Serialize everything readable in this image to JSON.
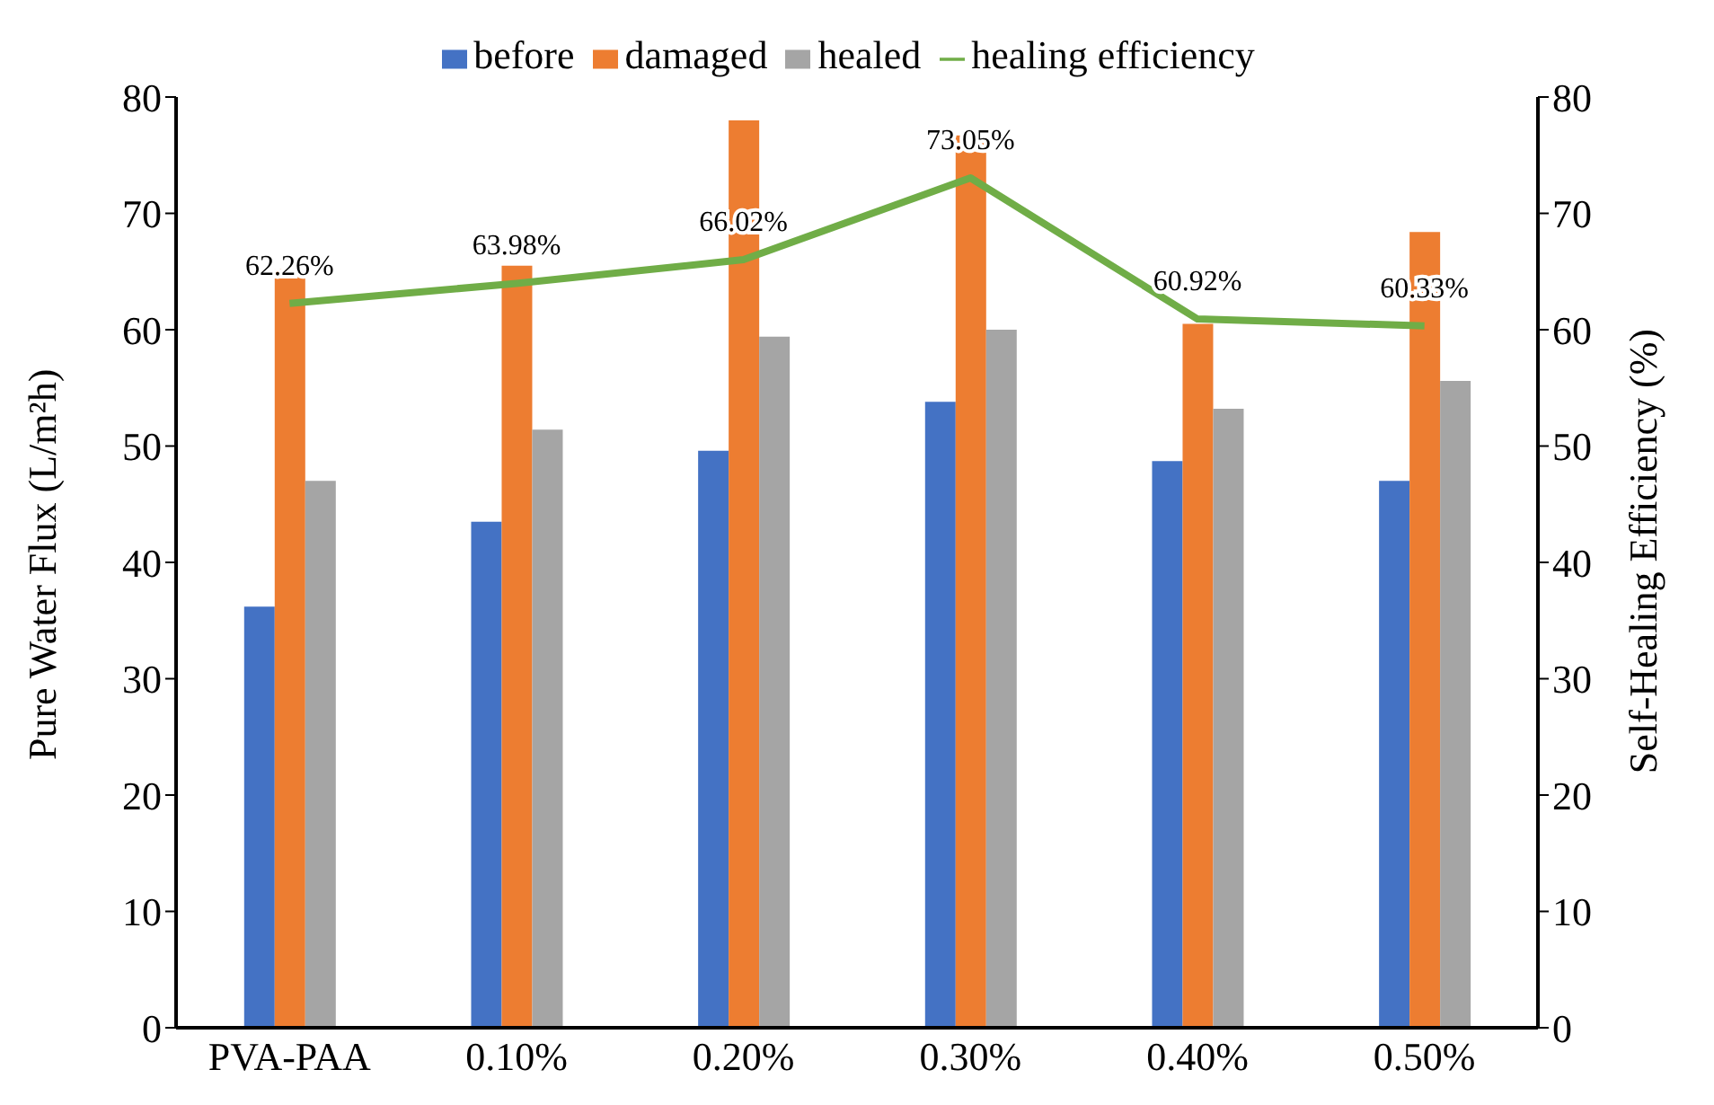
{
  "chart_data": {
    "type": "bar",
    "categories": [
      "PVA-PAA",
      "0.10%",
      "0.20%",
      "0.30%",
      "0.40%",
      "0.50%"
    ],
    "ylabel": "Pure Water Flux (L/m²h)",
    "y2label": "Self-Healing Efficiency (%)",
    "ylim": [
      0,
      80
    ],
    "yticks": [
      0,
      10,
      20,
      30,
      40,
      50,
      60,
      70,
      80
    ],
    "y2lim": [
      0,
      80
    ],
    "y2ticks": [
      0,
      10,
      20,
      30,
      40,
      50,
      60,
      70,
      80
    ],
    "grid": false,
    "legend": "top",
    "marker": "none",
    "series": [
      {
        "name": "before",
        "color": "#4472c4",
        "values": [
          36.2,
          43.5,
          49.6,
          53.8,
          48.7,
          47.0
        ]
      },
      {
        "name": "damaged",
        "color": "#ed7d31",
        "values": [
          65.2,
          65.5,
          78.0,
          76.7,
          60.5,
          68.4
        ]
      },
      {
        "name": "healed",
        "color": "#a5a5a5",
        "values": [
          47.0,
          51.4,
          59.4,
          60.0,
          53.2,
          55.6
        ]
      },
      {
        "name": "healing efficiency",
        "type": "line",
        "axis": "y2",
        "color": "#70ad47",
        "values": [
          62.26,
          63.98,
          66.02,
          73.05,
          60.92,
          60.33
        ],
        "value_labels": [
          "62.26%",
          "63.98%",
          "66.02%",
          "73.05%",
          "60.92%",
          "60.33%"
        ]
      }
    ]
  }
}
